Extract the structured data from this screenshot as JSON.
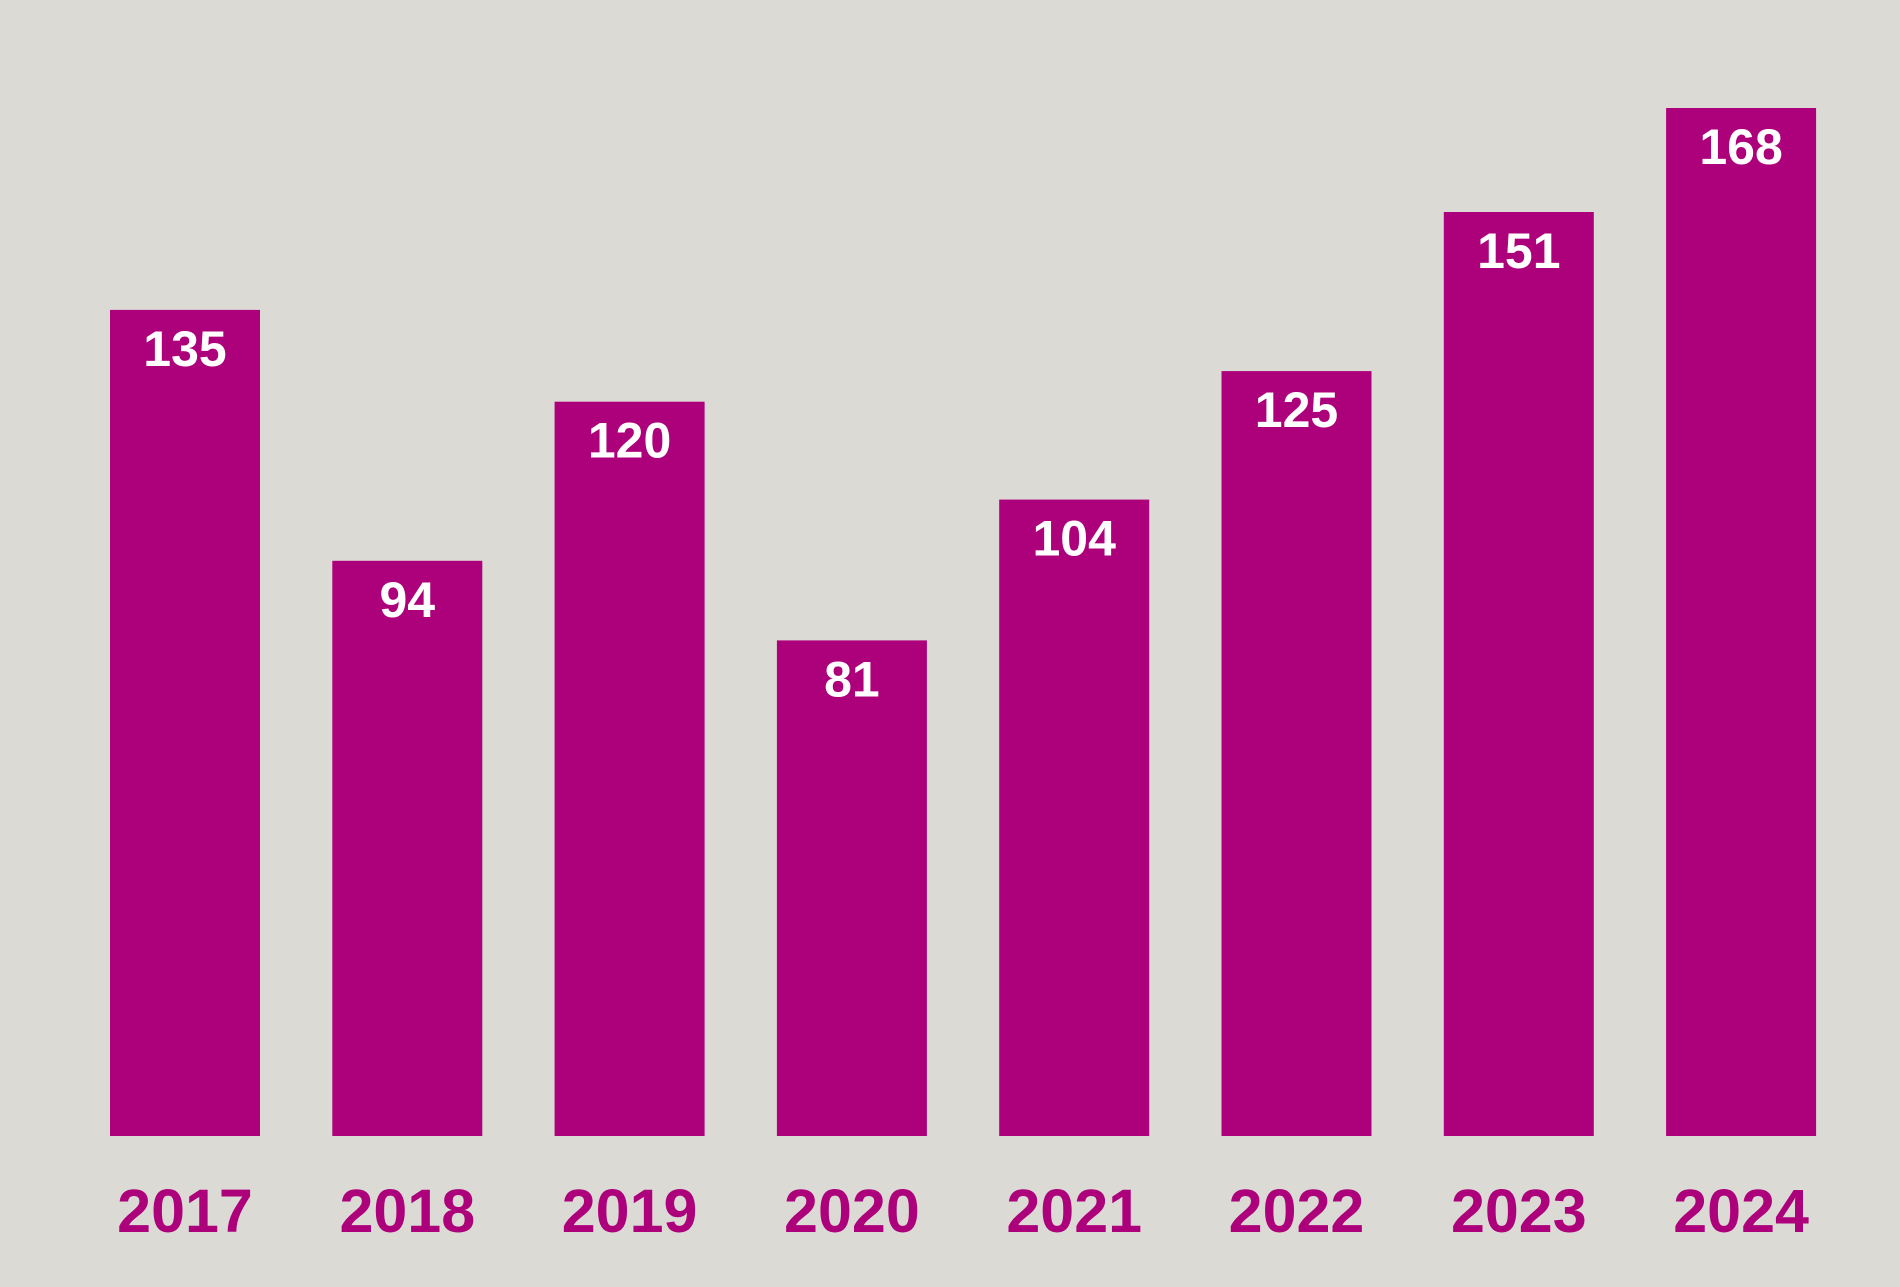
{
  "chart_data": {
    "type": "bar",
    "categories": [
      "2017",
      "2018",
      "2019",
      "2020",
      "2021",
      "2022",
      "2023",
      "2024"
    ],
    "values": [
      135,
      94,
      120,
      81,
      104,
      125,
      151,
      168
    ],
    "data_labels": [
      "135",
      "94",
      "120",
      "81",
      "104",
      "125",
      "151",
      "168"
    ],
    "title": "",
    "xlabel": "",
    "ylabel": "",
    "ylim": [
      0,
      168
    ],
    "grid": false,
    "legend": "none",
    "colors": {
      "background": "#dcdad5",
      "bar": "#ad007b",
      "data_label": "#ffffff",
      "tick_label": "#ad007b"
    }
  }
}
